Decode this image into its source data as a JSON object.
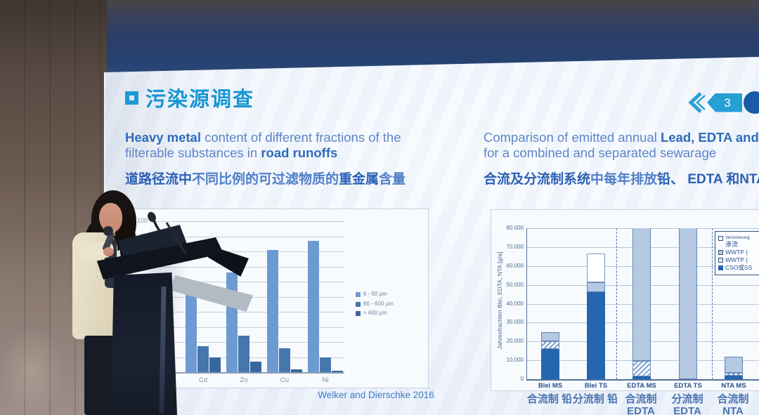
{
  "scene": {
    "description": "speaker presenting slide at lectern",
    "page_badge": {
      "number": "3"
    }
  },
  "theme": {
    "accent_blue": "#1b9ad6",
    "heading_blue": "#2f6cba",
    "badge_blue": "#259fd4",
    "badge_dot_blue": "#1a5ba6"
  },
  "slide": {
    "title": {
      "bullet": "口",
      "text": "污染源调查"
    },
    "left_block": {
      "en_line1_bold": "Heavy metal",
      "en_line1_rest": " content of different fractions of the",
      "en_line2_rest": "filterable substances in ",
      "en_line2_bold": "road runoffs",
      "zh_bold1": "道路径流中",
      "zh_rest1": "不同比例的可过滤物质的",
      "zh_bold2": "重金属",
      "zh_rest2": "含量"
    },
    "right_block": {
      "en_line1_rest": "Comparison of emitted annual ",
      "en_line1_bold": "Lead, EDTA and NTA",
      "en_line2": "for a combined and separated sewarage",
      "zh_bold1": "合流及分流制系统",
      "zh_rest1": "中每年排放",
      "zh_bold2": "铅、",
      "zh_bold3": " EDTA 和NTA"
    }
  },
  "chart_data": [
    {
      "type": "bar",
      "categories": [
        "Cd",
        "Zn",
        "Cu",
        "Ni"
      ],
      "series": [
        {
          "name": "6 - 60 µm",
          "color": "#6d9ad1",
          "values": [
            51,
            66,
            81,
            87
          ]
        },
        {
          "name": "60 - 600 µm",
          "color": "#4576ae",
          "values": [
            17,
            24,
            16,
            10
          ]
        },
        {
          "name": "> 600 µm",
          "color": "#38679f",
          "values": [
            10,
            7,
            2,
            1
          ]
        }
      ],
      "ylim": [
        0,
        100
      ],
      "ytick_step": 10,
      "grid": true,
      "legend_position": "right",
      "source": "Welker and Dierschke 2016"
    },
    {
      "type": "stacked-bar",
      "ylabel": "Jahresfrachten  Blei, EDTA, NTA [g/a]",
      "ylim": [
        0,
        80000
      ],
      "ytick_labels": [
        "0",
        "10.000",
        "20.000",
        "30.000",
        "40.000",
        "50.000",
        "60.000",
        "70.000",
        "80.000"
      ],
      "categories": [
        "Blei MS",
        "Blei TS",
        "EDTA MS",
        "EDTA TS",
        "NTA MS"
      ],
      "categories_zh": [
        [
          "合流制 铅"
        ],
        [
          "分流制 铅"
        ],
        [
          "合流制",
          "EDTA"
        ],
        [
          "分流制",
          "EDTA"
        ],
        [
          "合流制",
          "NTA"
        ]
      ],
      "legend": [
        {
          "style": "outline",
          "label": "Versickerung",
          "label_zh": "渗流"
        },
        {
          "style": "light",
          "label": "WWTP ("
        },
        {
          "style": "pale",
          "label": "WWTP ("
        },
        {
          "style": "dark",
          "label": "CSO或SS"
        }
      ],
      "styles": {
        "dark": "#2566af",
        "light": "#b6c9e2",
        "pale": "#dfe8f3",
        "outline": "#ffffff",
        "hatch": "hatch"
      },
      "bars": [
        {
          "category": "Blei MS",
          "segments": [
            [
              "dark",
              16000
            ],
            [
              "hatch",
              4000
            ],
            [
              "light",
              5000
            ]
          ]
        },
        {
          "category": "Blei TS",
          "segments": [
            [
              "dark",
              46000
            ],
            [
              "light",
              5500
            ],
            [
              "outline",
              15000
            ]
          ]
        },
        {
          "category": "EDTA MS",
          "segments": [
            [
              "dark",
              1500
            ],
            [
              "hatch",
              8000
            ],
            [
              "light",
              74500
            ]
          ]
        },
        {
          "category": "EDTA TS",
          "segments": [
            [
              "light",
              84000
            ]
          ]
        },
        {
          "category": "NTA MS",
          "segments": [
            [
              "dark",
              1800
            ],
            [
              "hatch",
              1400
            ],
            [
              "light",
              8800
            ]
          ]
        }
      ],
      "grid": true,
      "legend_position": "top-right"
    }
  ]
}
